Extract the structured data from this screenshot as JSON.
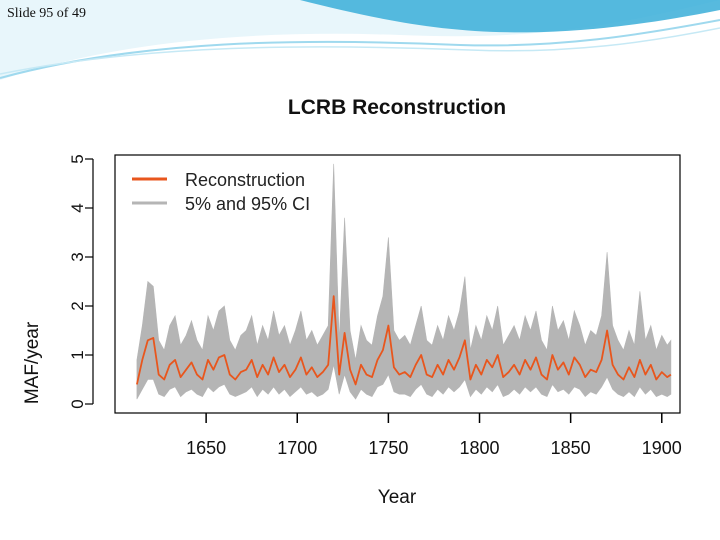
{
  "slide": {
    "counter": "Slide 95 of 49"
  },
  "colors": {
    "reconstruction": "#e8561d",
    "ci": "#b5b5b5",
    "header_teal": "#3aaed8"
  },
  "chart_data": {
    "type": "line",
    "title": "LCRB  Reconstruction",
    "xlabel": "Year",
    "ylabel": "MAF/year",
    "xlim": [
      1600,
      1910
    ],
    "ylim": [
      0,
      5
    ],
    "xticks": [
      1650,
      1700,
      1750,
      1800,
      1850,
      1900
    ],
    "yticks": [
      0,
      1,
      2,
      3,
      4,
      5
    ],
    "grid": false,
    "legend_position": "top-left",
    "series": [
      {
        "name": "Reconstruction",
        "color": "#e8561d",
        "x": [
          1612,
          1615,
          1618,
          1621,
          1624,
          1627,
          1630,
          1633,
          1636,
          1639,
          1642,
          1645,
          1648,
          1651,
          1654,
          1657,
          1660,
          1663,
          1666,
          1669,
          1672,
          1675,
          1678,
          1681,
          1684,
          1687,
          1690,
          1693,
          1696,
          1699,
          1702,
          1705,
          1708,
          1711,
          1714,
          1717,
          1720,
          1723,
          1726,
          1729,
          1732,
          1735,
          1738,
          1741,
          1744,
          1747,
          1750,
          1753,
          1756,
          1759,
          1762,
          1765,
          1768,
          1771,
          1774,
          1777,
          1780,
          1783,
          1786,
          1789,
          1792,
          1795,
          1798,
          1801,
          1804,
          1807,
          1810,
          1813,
          1816,
          1819,
          1822,
          1825,
          1828,
          1831,
          1834,
          1837,
          1840,
          1843,
          1846,
          1849,
          1852,
          1855,
          1858,
          1861,
          1864,
          1867,
          1870,
          1873,
          1876,
          1879,
          1882,
          1885,
          1888,
          1891,
          1894,
          1897,
          1900,
          1903,
          1905
        ],
        "values": [
          0.4,
          0.9,
          1.3,
          1.35,
          0.6,
          0.5,
          0.8,
          0.9,
          0.55,
          0.7,
          0.85,
          0.6,
          0.5,
          0.9,
          0.7,
          0.95,
          1.0,
          0.6,
          0.5,
          0.65,
          0.7,
          0.9,
          0.55,
          0.8,
          0.6,
          0.95,
          0.65,
          0.8,
          0.55,
          0.7,
          0.95,
          0.6,
          0.75,
          0.55,
          0.65,
          0.8,
          2.2,
          0.6,
          1.45,
          0.7,
          0.4,
          0.8,
          0.6,
          0.55,
          0.9,
          1.1,
          1.6,
          0.75,
          0.6,
          0.65,
          0.55,
          0.8,
          1.0,
          0.6,
          0.55,
          0.8,
          0.6,
          0.9,
          0.7,
          0.95,
          1.3,
          0.5,
          0.8,
          0.6,
          0.9,
          0.75,
          1.0,
          0.55,
          0.65,
          0.8,
          0.6,
          0.9,
          0.7,
          0.95,
          0.6,
          0.5,
          1.0,
          0.7,
          0.85,
          0.6,
          0.95,
          0.8,
          0.55,
          0.7,
          0.65,
          0.9,
          1.5,
          0.8,
          0.6,
          0.5,
          0.75,
          0.55,
          0.9,
          0.6,
          0.8,
          0.5,
          0.65,
          0.55,
          0.6
        ]
      },
      {
        "name": "5% and 95% CI",
        "color": "#b5b5b5",
        "x": [
          1612,
          1615,
          1618,
          1621,
          1624,
          1627,
          1630,
          1633,
          1636,
          1639,
          1642,
          1645,
          1648,
          1651,
          1654,
          1657,
          1660,
          1663,
          1666,
          1669,
          1672,
          1675,
          1678,
          1681,
          1684,
          1687,
          1690,
          1693,
          1696,
          1699,
          1702,
          1705,
          1708,
          1711,
          1714,
          1717,
          1720,
          1723,
          1726,
          1729,
          1732,
          1735,
          1738,
          1741,
          1744,
          1747,
          1750,
          1753,
          1756,
          1759,
          1762,
          1765,
          1768,
          1771,
          1774,
          1777,
          1780,
          1783,
          1786,
          1789,
          1792,
          1795,
          1798,
          1801,
          1804,
          1807,
          1810,
          1813,
          1816,
          1819,
          1822,
          1825,
          1828,
          1831,
          1834,
          1837,
          1840,
          1843,
          1846,
          1849,
          1852,
          1855,
          1858,
          1861,
          1864,
          1867,
          1870,
          1873,
          1876,
          1879,
          1882,
          1885,
          1888,
          1891,
          1894,
          1897,
          1900,
          1903,
          1905
        ],
        "lower": [
          0.1,
          0.3,
          0.5,
          0.5,
          0.2,
          0.15,
          0.3,
          0.35,
          0.15,
          0.25,
          0.3,
          0.2,
          0.15,
          0.35,
          0.25,
          0.35,
          0.4,
          0.2,
          0.15,
          0.2,
          0.25,
          0.35,
          0.15,
          0.3,
          0.2,
          0.35,
          0.2,
          0.3,
          0.15,
          0.25,
          0.35,
          0.2,
          0.25,
          0.15,
          0.2,
          0.3,
          0.8,
          0.2,
          0.6,
          0.25,
          0.1,
          0.3,
          0.2,
          0.15,
          0.35,
          0.4,
          0.6,
          0.25,
          0.2,
          0.2,
          0.15,
          0.3,
          0.4,
          0.2,
          0.15,
          0.3,
          0.2,
          0.35,
          0.25,
          0.35,
          0.5,
          0.15,
          0.3,
          0.2,
          0.35,
          0.25,
          0.4,
          0.15,
          0.2,
          0.3,
          0.2,
          0.35,
          0.25,
          0.35,
          0.2,
          0.15,
          0.4,
          0.25,
          0.3,
          0.2,
          0.35,
          0.3,
          0.15,
          0.25,
          0.2,
          0.35,
          0.55,
          0.3,
          0.2,
          0.15,
          0.25,
          0.15,
          0.35,
          0.2,
          0.3,
          0.15,
          0.2,
          0.15,
          0.2
        ],
        "upper": [
          0.9,
          1.6,
          2.5,
          2.4,
          1.3,
          1.1,
          1.6,
          1.8,
          1.2,
          1.4,
          1.7,
          1.3,
          1.1,
          1.8,
          1.5,
          1.9,
          2.0,
          1.3,
          1.1,
          1.4,
          1.5,
          1.8,
          1.2,
          1.6,
          1.3,
          1.9,
          1.4,
          1.6,
          1.2,
          1.5,
          1.9,
          1.3,
          1.5,
          1.2,
          1.4,
          1.6,
          4.9,
          1.3,
          3.8,
          1.5,
          0.9,
          1.6,
          1.3,
          1.2,
          1.8,
          2.2,
          3.4,
          1.5,
          1.3,
          1.4,
          1.2,
          1.6,
          2.0,
          1.3,
          1.2,
          1.6,
          1.3,
          1.8,
          1.5,
          1.9,
          2.6,
          1.1,
          1.6,
          1.3,
          1.8,
          1.5,
          2.0,
          1.2,
          1.4,
          1.6,
          1.3,
          1.8,
          1.5,
          1.9,
          1.3,
          1.1,
          2.0,
          1.5,
          1.7,
          1.3,
          1.9,
          1.6,
          1.2,
          1.5,
          1.4,
          1.8,
          3.1,
          1.6,
          1.3,
          1.1,
          1.5,
          1.2,
          2.3,
          1.3,
          1.6,
          1.1,
          1.4,
          1.2,
          1.3
        ]
      }
    ]
  }
}
